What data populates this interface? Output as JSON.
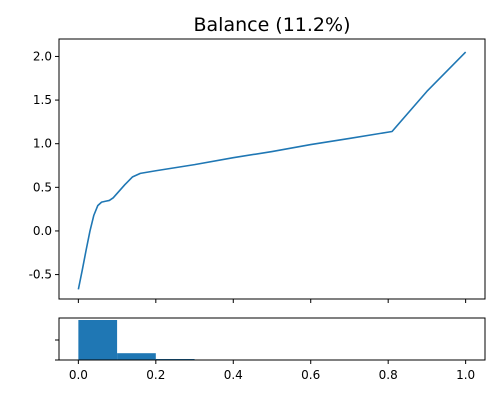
{
  "chart_data": [
    {
      "type": "line",
      "title": "Balance (11.2%)",
      "xlabel": "",
      "ylabel": "",
      "xlim": [
        -0.05,
        1.05
      ],
      "ylim": [
        -0.78,
        2.2
      ],
      "yticks": [
        "2.0",
        "1.5",
        "1.0",
        "0.5",
        "0.0",
        "-0.5"
      ],
      "ytick_values": [
        2.0,
        1.5,
        1.0,
        0.5,
        0.0,
        -0.5
      ],
      "xticks_shown": false,
      "grid": false,
      "color": "#1f77b4",
      "series": [
        {
          "x": [
            0.0,
            0.01,
            0.02,
            0.03,
            0.04,
            0.05,
            0.06,
            0.07,
            0.08,
            0.09,
            0.1,
            0.12,
            0.14,
            0.16,
            0.2,
            0.3,
            0.4,
            0.5,
            0.6,
            0.7,
            0.81,
            0.9,
            1.0
          ],
          "y": [
            -0.67,
            -0.45,
            -0.22,
            0.0,
            0.18,
            0.29,
            0.33,
            0.34,
            0.35,
            0.38,
            0.43,
            0.53,
            0.62,
            0.66,
            0.69,
            0.76,
            0.84,
            0.91,
            0.99,
            1.06,
            1.14,
            1.6,
            2.05
          ]
        }
      ]
    },
    {
      "type": "bar",
      "title": "",
      "xlabel": "",
      "ylabel": "",
      "xlim": [
        -0.05,
        1.05
      ],
      "ylim": [
        0,
        1.05
      ],
      "xticks": [
        "0.0",
        "0.2",
        "0.4",
        "0.6",
        "0.8",
        "1.0"
      ],
      "xtick_values": [
        0.0,
        0.2,
        0.4,
        0.6,
        0.8,
        1.0
      ],
      "yticks_labeled": false,
      "grid": false,
      "color": "#1f77b4",
      "bins": [
        {
          "left": 0.0,
          "right": 0.1,
          "value": 1.0
        },
        {
          "left": 0.1,
          "right": 0.2,
          "value": 0.17
        },
        {
          "left": 0.2,
          "right": 0.3,
          "value": 0.025
        }
      ]
    }
  ]
}
